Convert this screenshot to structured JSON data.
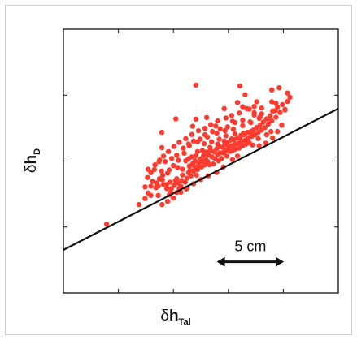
{
  "chart_data": {
    "type": "scatter",
    "title": "",
    "xlabel": {
      "greek": "δ",
      "main": "h",
      "sub": "Tal"
    },
    "ylabel": {
      "greek": "δ",
      "main": "h",
      "sub": "D"
    },
    "xlim": [
      0,
      1
    ],
    "ylim": [
      0,
      1
    ],
    "x_ticks": [
      0.2,
      0.4,
      0.6,
      0.8
    ],
    "y_ticks": [
      0.25,
      0.5,
      0.75
    ],
    "grid": false,
    "legend": "none",
    "point_color": "#ff3b30",
    "line_color": "#111111",
    "fit_line": {
      "x": [
        0,
        1
      ],
      "y": [
        0.163,
        0.699
      ]
    },
    "scale_bar": {
      "label": "5 cm",
      "x_start": 0.558,
      "x_end": 0.802,
      "y": 0.118
    },
    "points": [
      [
        0.157,
        0.261
      ],
      [
        0.275,
        0.335
      ],
      [
        0.297,
        0.358
      ],
      [
        0.318,
        0.37
      ],
      [
        0.318,
        0.405
      ],
      [
        0.297,
        0.402
      ],
      [
        0.308,
        0.379
      ],
      [
        0.345,
        0.37
      ],
      [
        0.345,
        0.405
      ],
      [
        0.324,
        0.423
      ],
      [
        0.308,
        0.469
      ],
      [
        0.336,
        0.399
      ],
      [
        0.36,
        0.429
      ],
      [
        0.375,
        0.411
      ],
      [
        0.376,
        0.396
      ],
      [
        0.385,
        0.372
      ],
      [
        0.39,
        0.381
      ],
      [
        0.393,
        0.396
      ],
      [
        0.402,
        0.408
      ],
      [
        0.407,
        0.426
      ],
      [
        0.412,
        0.381
      ],
      [
        0.415,
        0.417
      ],
      [
        0.421,
        0.396
      ],
      [
        0.427,
        0.405
      ],
      [
        0.43,
        0.426
      ],
      [
        0.433,
        0.447
      ],
      [
        0.443,
        0.42
      ],
      [
        0.447,
        0.394
      ],
      [
        0.45,
        0.435
      ],
      [
        0.455,
        0.456
      ],
      [
        0.458,
        0.481
      ],
      [
        0.461,
        0.465
      ],
      [
        0.464,
        0.444
      ],
      [
        0.47,
        0.49
      ],
      [
        0.473,
        0.462
      ],
      [
        0.477,
        0.48
      ],
      [
        0.479,
        0.501
      ],
      [
        0.484,
        0.447
      ],
      [
        0.488,
        0.468
      ],
      [
        0.492,
        0.493
      ],
      [
        0.495,
        0.48
      ],
      [
        0.5,
        0.509
      ],
      [
        0.503,
        0.478
      ],
      [
        0.506,
        0.498
      ],
      [
        0.51,
        0.522
      ],
      [
        0.515,
        0.486
      ],
      [
        0.518,
        0.505
      ],
      [
        0.521,
        0.534
      ],
      [
        0.525,
        0.498
      ],
      [
        0.528,
        0.522
      ],
      [
        0.531,
        0.486
      ],
      [
        0.536,
        0.54
      ],
      [
        0.54,
        0.516
      ],
      [
        0.545,
        0.489
      ],
      [
        0.549,
        0.534
      ],
      [
        0.552,
        0.509
      ],
      [
        0.557,
        0.546
      ],
      [
        0.561,
        0.525
      ],
      [
        0.564,
        0.501
      ],
      [
        0.567,
        0.555
      ],
      [
        0.57,
        0.531
      ],
      [
        0.575,
        0.51
      ],
      [
        0.579,
        0.552
      ],
      [
        0.582,
        0.531
      ],
      [
        0.587,
        0.564
      ],
      [
        0.591,
        0.54
      ],
      [
        0.594,
        0.519
      ],
      [
        0.597,
        0.57
      ],
      [
        0.6,
        0.552
      ],
      [
        0.606,
        0.537
      ],
      [
        0.609,
        0.58
      ],
      [
        0.612,
        0.558
      ],
      [
        0.616,
        0.54
      ],
      [
        0.621,
        0.582
      ],
      [
        0.624,
        0.564
      ],
      [
        0.627,
        0.546
      ],
      [
        0.633,
        0.588
      ],
      [
        0.636,
        0.567
      ],
      [
        0.639,
        0.549
      ],
      [
        0.645,
        0.597
      ],
      [
        0.648,
        0.576
      ],
      [
        0.652,
        0.558
      ],
      [
        0.657,
        0.6
      ],
      [
        0.661,
        0.579
      ],
      [
        0.664,
        0.564
      ],
      [
        0.67,
        0.609
      ],
      [
        0.673,
        0.588
      ],
      [
        0.676,
        0.57
      ],
      [
        0.682,
        0.612
      ],
      [
        0.685,
        0.594
      ],
      [
        0.691,
        0.618
      ],
      [
        0.697,
        0.6
      ],
      [
        0.703,
        0.627
      ],
      [
        0.709,
        0.609
      ],
      [
        0.715,
        0.636
      ],
      [
        0.721,
        0.618
      ],
      [
        0.727,
        0.648
      ],
      [
        0.733,
        0.627
      ],
      [
        0.739,
        0.66
      ],
      [
        0.745,
        0.64
      ],
      [
        0.752,
        0.672
      ],
      [
        0.758,
        0.652
      ],
      [
        0.764,
        0.69
      ],
      [
        0.773,
        0.666
      ],
      [
        0.779,
        0.705
      ],
      [
        0.788,
        0.684
      ],
      [
        0.797,
        0.714
      ],
      [
        0.806,
        0.696
      ],
      [
        0.815,
        0.726
      ],
      [
        0.824,
        0.742
      ],
      [
        0.806,
        0.694
      ],
      [
        0.773,
        0.719
      ],
      [
        0.758,
        0.725
      ],
      [
        0.721,
        0.679
      ],
      [
        0.694,
        0.674
      ],
      [
        0.679,
        0.649
      ],
      [
        0.652,
        0.634
      ],
      [
        0.618,
        0.621
      ],
      [
        0.588,
        0.615
      ],
      [
        0.558,
        0.606
      ],
      [
        0.524,
        0.591
      ],
      [
        0.497,
        0.583
      ],
      [
        0.473,
        0.576
      ],
      [
        0.455,
        0.565
      ],
      [
        0.436,
        0.549
      ],
      [
        0.412,
        0.522
      ],
      [
        0.394,
        0.51
      ],
      [
        0.37,
        0.498
      ],
      [
        0.35,
        0.504
      ],
      [
        0.331,
        0.468
      ],
      [
        0.357,
        0.462
      ],
      [
        0.385,
        0.466
      ],
      [
        0.415,
        0.476
      ],
      [
        0.445,
        0.501
      ],
      [
        0.467,
        0.516
      ],
      [
        0.488,
        0.536
      ],
      [
        0.512,
        0.566
      ],
      [
        0.539,
        0.573
      ],
      [
        0.567,
        0.583
      ],
      [
        0.591,
        0.596
      ],
      [
        0.624,
        0.603
      ],
      [
        0.655,
        0.606
      ],
      [
        0.682,
        0.603
      ],
      [
        0.709,
        0.585
      ],
      [
        0.739,
        0.6
      ],
      [
        0.755,
        0.612
      ],
      [
        0.743,
        0.66
      ],
      [
        0.712,
        0.662
      ],
      [
        0.682,
        0.646
      ],
      [
        0.652,
        0.655
      ],
      [
        0.624,
        0.646
      ],
      [
        0.597,
        0.63
      ],
      [
        0.57,
        0.622
      ],
      [
        0.542,
        0.612
      ],
      [
        0.515,
        0.6
      ],
      [
        0.488,
        0.573
      ],
      [
        0.458,
        0.558
      ],
      [
        0.439,
        0.53
      ],
      [
        0.418,
        0.503
      ],
      [
        0.4,
        0.483
      ],
      [
        0.379,
        0.454
      ],
      [
        0.361,
        0.446
      ],
      [
        0.349,
        0.433
      ],
      [
        0.339,
        0.417
      ],
      [
        0.364,
        0.411
      ],
      [
        0.388,
        0.42
      ],
      [
        0.412,
        0.433
      ],
      [
        0.433,
        0.469
      ],
      [
        0.455,
        0.509
      ],
      [
        0.482,
        0.52
      ],
      [
        0.506,
        0.54
      ],
      [
        0.533,
        0.552
      ],
      [
        0.561,
        0.564
      ],
      [
        0.585,
        0.576
      ],
      [
        0.612,
        0.584
      ],
      [
        0.642,
        0.588
      ],
      [
        0.667,
        0.579
      ],
      [
        0.688,
        0.561
      ],
      [
        0.712,
        0.558
      ],
      [
        0.736,
        0.568
      ],
      [
        0.761,
        0.588
      ],
      [
        0.779,
        0.612
      ],
      [
        0.794,
        0.636
      ],
      [
        0.761,
        0.69
      ],
      [
        0.721,
        0.701
      ],
      [
        0.694,
        0.707
      ],
      [
        0.667,
        0.699
      ],
      [
        0.64,
        0.682
      ],
      [
        0.612,
        0.673
      ],
      [
        0.591,
        0.663
      ],
      [
        0.561,
        0.652
      ],
      [
        0.536,
        0.638
      ],
      [
        0.515,
        0.624
      ],
      [
        0.491,
        0.615
      ],
      [
        0.467,
        0.601
      ],
      [
        0.445,
        0.585
      ],
      [
        0.421,
        0.571
      ],
      [
        0.402,
        0.555
      ],
      [
        0.382,
        0.536
      ],
      [
        0.364,
        0.519
      ],
      [
        0.348,
        0.498
      ],
      [
        0.333,
        0.486
      ],
      [
        0.318,
        0.456
      ],
      [
        0.306,
        0.438
      ],
      [
        0.409,
        0.66
      ],
      [
        0.482,
        0.659
      ],
      [
        0.47,
        0.632
      ],
      [
        0.521,
        0.665
      ],
      [
        0.554,
        0.633
      ],
      [
        0.585,
        0.699
      ],
      [
        0.615,
        0.651
      ],
      [
        0.633,
        0.722
      ],
      [
        0.642,
        0.785
      ],
      [
        0.652,
        0.706
      ],
      [
        0.661,
        0.751
      ],
      [
        0.676,
        0.697
      ],
      [
        0.694,
        0.683
      ],
      [
        0.703,
        0.725
      ],
      [
        0.715,
        0.667
      ],
      [
        0.758,
        0.77
      ],
      [
        0.77,
        0.691
      ],
      [
        0.785,
        0.778
      ],
      [
        0.815,
        0.758
      ],
      [
        0.482,
        0.788
      ],
      [
        0.358,
        0.551
      ],
      [
        0.358,
        0.609
      ],
      [
        0.582,
        0.533
      ],
      [
        0.615,
        0.506
      ],
      [
        0.633,
        0.519
      ],
      [
        0.582,
        0.478
      ],
      [
        0.558,
        0.457
      ],
      [
        0.527,
        0.444
      ],
      [
        0.5,
        0.43
      ],
      [
        0.473,
        0.414
      ],
      [
        0.449,
        0.398
      ],
      [
        0.427,
        0.382
      ],
      [
        0.4,
        0.36
      ],
      [
        0.379,
        0.347
      ],
      [
        0.359,
        0.335
      ]
    ]
  }
}
